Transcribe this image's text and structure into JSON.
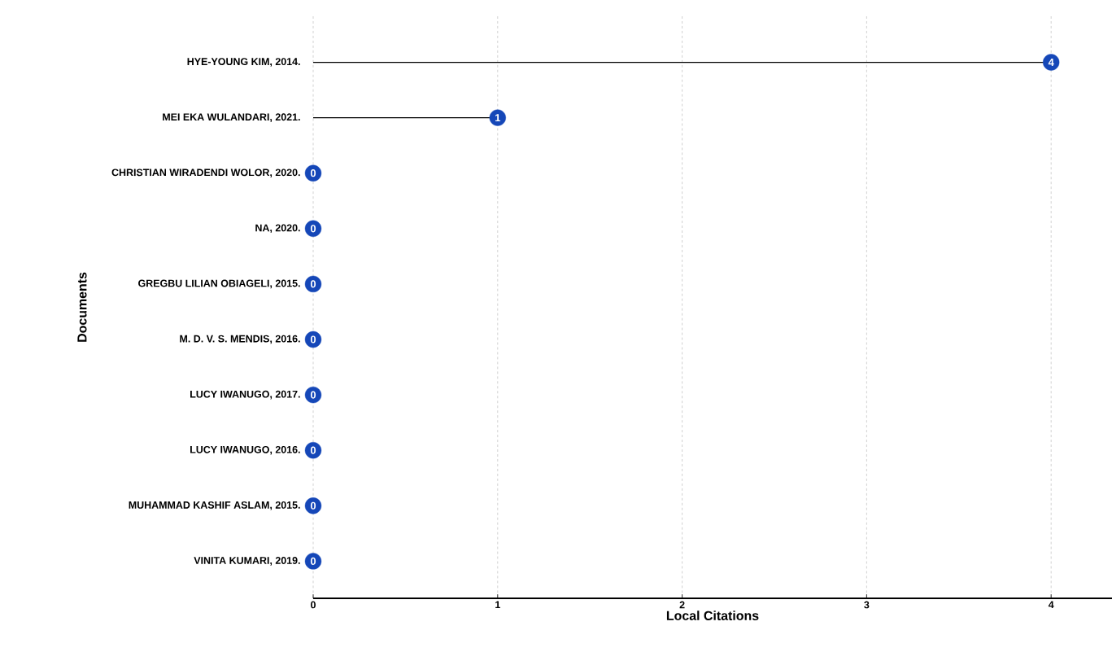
{
  "chart_data": {
    "type": "lollipop",
    "orientation": "horizontal",
    "xlabel": "Local Citations",
    "ylabel": "Documents",
    "categories": [
      "HYE-YOUNG KIM, 2014.",
      "MEI EKA WULANDARI, 2021.",
      "CHRISTIAN WIRADENDI WOLOR, 2020.",
      "NA, 2020.",
      "GREGBU LILIAN OBIAGELI, 2015.",
      "M. D. V. S. MENDIS, 2016.",
      "LUCY IWANUGO, 2017.",
      "LUCY IWANUGO, 2016.",
      "MUHAMMAD KASHIF ASLAM, 2015.",
      "VINITA KUMARI, 2019."
    ],
    "values": [
      4,
      1,
      0,
      0,
      0,
      0,
      0,
      0,
      0,
      0
    ],
    "color": "#1547b8",
    "xlim": [
      0,
      4.33
    ],
    "xticks": [
      0,
      1,
      2,
      3,
      4
    ],
    "grid": "x",
    "marker": "circle",
    "data_labels": true
  }
}
